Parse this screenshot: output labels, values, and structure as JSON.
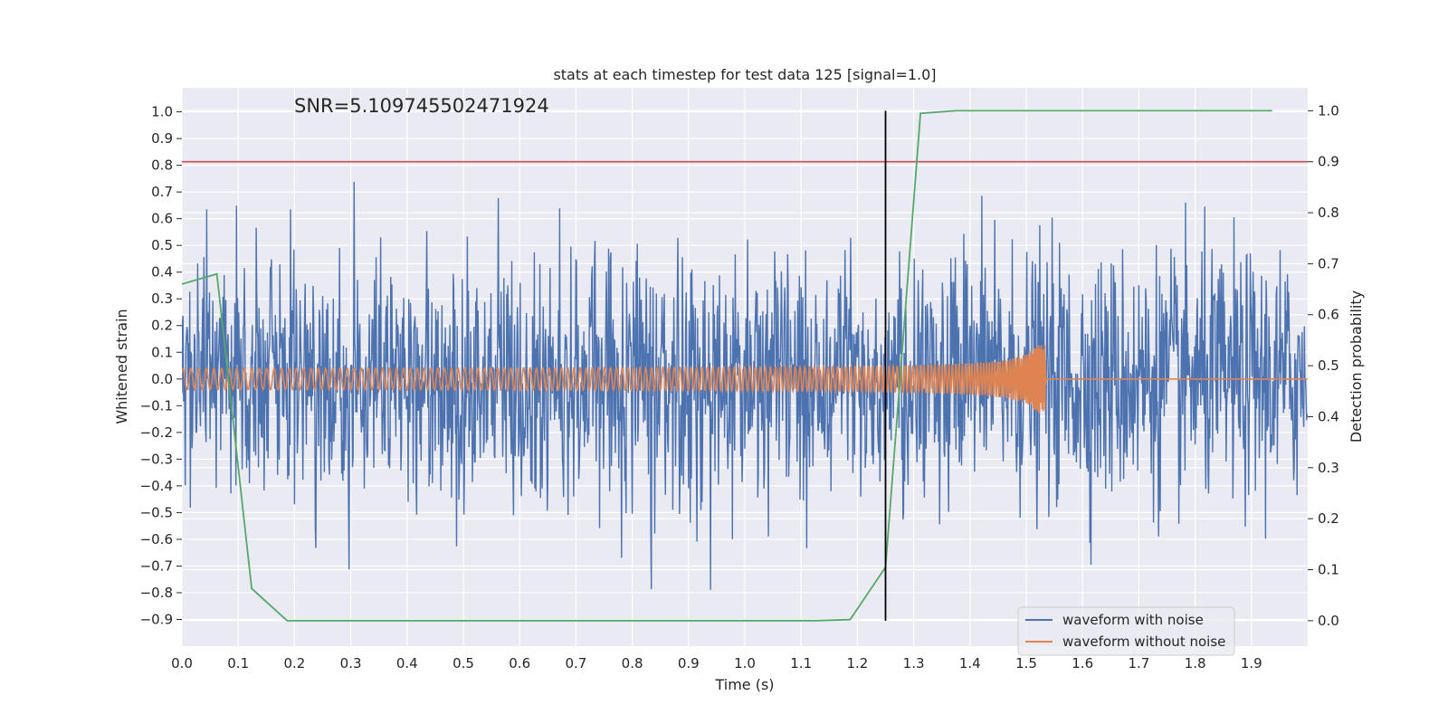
{
  "chart_data": {
    "type": "line",
    "title": "stats at each timestep for test data 125 [signal=1.0]",
    "xlabel": "Time (s)",
    "ylabel": "Whitened strain",
    "y2label": "Detection probability",
    "xlim": [
      0.0,
      2.0
    ],
    "ylim": [
      -1.0,
      1.09
    ],
    "y2lim": [
      -0.05,
      1.045
    ],
    "x_ticks": [
      "0.0",
      "0.1",
      "0.2",
      "0.3",
      "0.4",
      "0.5",
      "0.6",
      "0.7",
      "0.8",
      "0.9",
      "1.0",
      "1.1",
      "1.2",
      "1.3",
      "1.4",
      "1.5",
      "1.6",
      "1.7",
      "1.8",
      "1.9"
    ],
    "y_ticks": [
      "1.0",
      "0.9",
      "0.8",
      "0.7",
      "0.6",
      "0.5",
      "0.4",
      "0.3",
      "0.2",
      "0.1",
      "0.0",
      "−0.1",
      "−0.2",
      "−0.3",
      "−0.4",
      "−0.5",
      "−0.6",
      "−0.7",
      "−0.8",
      "−0.9"
    ],
    "y2_ticks": [
      "1.0",
      "0.9",
      "0.8",
      "0.7",
      "0.6",
      "0.5",
      "0.4",
      "0.3",
      "0.2",
      "0.1",
      "0.0"
    ],
    "annotation": "SNR=5.109745502471924",
    "legend": [
      "waveform with noise",
      "waveform without noise"
    ],
    "legend_position": "lower-right",
    "grid": true,
    "colors": {
      "noise": "#4c72b0",
      "clean": "#dd8452",
      "probability": "#55a868",
      "threshold": "#c44e52",
      "marker": "#000000",
      "background": "#eaeaf2",
      "grid": "#ffffff"
    },
    "threshold_y2": 0.9,
    "marker_x": 1.25,
    "noise_amplitude": 0.42,
    "clean_amplitude": {
      "start": 0.035,
      "peak": 0.13,
      "merger_time": 1.535
    },
    "probability_series": {
      "x": [
        0.0,
        0.062,
        0.124,
        0.187,
        0.25,
        0.312,
        0.375,
        0.437,
        0.5,
        0.562,
        0.625,
        0.687,
        0.75,
        0.812,
        0.875,
        0.937,
        1.0,
        1.062,
        1.125,
        1.187,
        1.25,
        1.312,
        1.375,
        1.437,
        1.5,
        1.562,
        1.625,
        1.687,
        1.75,
        1.812,
        1.875,
        1.937
      ],
      "y": [
        0.66,
        0.68,
        0.063,
        0.0,
        0.0,
        0.0,
        0.0,
        0.0,
        0.0,
        0.0,
        0.0,
        0.0,
        0.0,
        0.0,
        0.0,
        0.0,
        0.0,
        0.0,
        0.0,
        0.002,
        0.105,
        0.995,
        1.0,
        1.0,
        1.0,
        1.0,
        1.0,
        1.0,
        1.0,
        1.0,
        1.0,
        1.0
      ]
    }
  }
}
